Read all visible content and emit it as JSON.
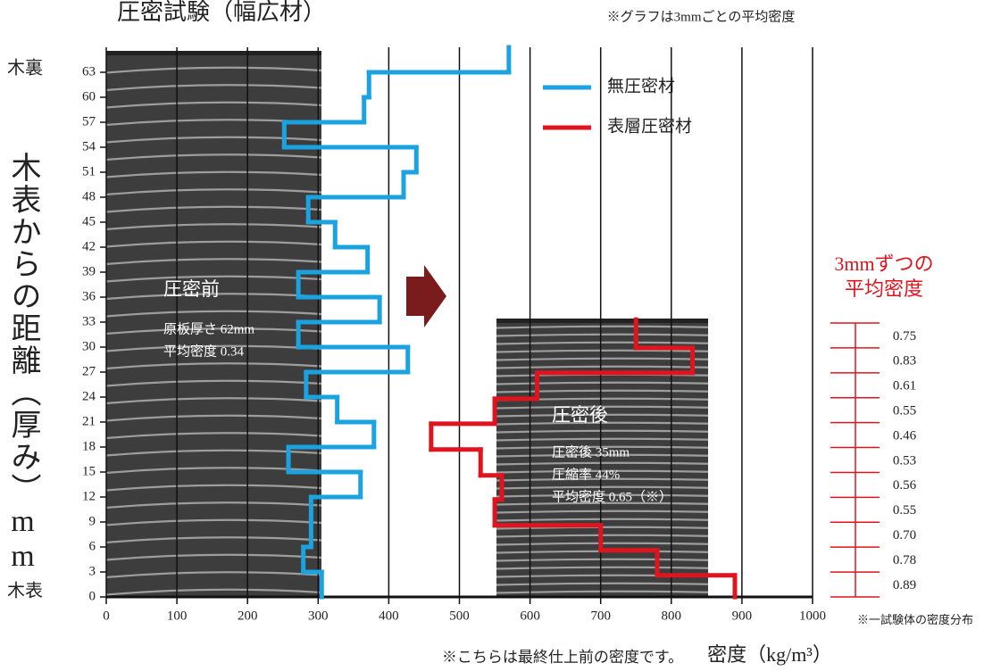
{
  "chart_data": {
    "type": "step",
    "title": "圧密試験（幅広材）",
    "note": "※グラフは3mmごとの平均密度",
    "x_label": "密度（kg/m³）",
    "x_footnote": "※こちらは最終仕上前の密度です。",
    "y_label": "木表からの距離（厚み）mm",
    "y_top_label": "木裏",
    "y_bottom_label": "木表",
    "xlim": [
      0,
      1000
    ],
    "xticks": [
      0,
      100,
      200,
      300,
      400,
      500,
      600,
      700,
      800,
      900,
      1000
    ],
    "ylim": [
      0,
      66
    ],
    "yticks": [
      0,
      3,
      6,
      9,
      12,
      15,
      18,
      21,
      24,
      27,
      30,
      33,
      36,
      39,
      42,
      45,
      48,
      51,
      54,
      57,
      60,
      63
    ],
    "grid": true,
    "series": [
      {
        "name": "無圧密材",
        "color": "#1aa3e0",
        "depth": [
          0,
          3,
          6,
          9,
          12,
          15,
          18,
          21,
          24,
          27,
          30,
          33,
          36,
          39,
          42,
          45,
          48,
          51,
          54,
          57,
          60,
          63,
          66
        ],
        "values": [
          305,
          279,
          290,
          290,
          360,
          258,
          379,
          327,
          283,
          427,
          272,
          387,
          272,
          370,
          324,
          286,
          421,
          439,
          252,
          365,
          372,
          570
        ]
      },
      {
        "name": "表層圧密材",
        "color": "#e0141e",
        "depth": [
          0,
          2.6,
          5.6,
          8.6,
          11.7,
          14.6,
          17.7,
          20.8,
          23.8,
          26.9,
          29.9,
          33.3
        ],
        "values": [
          890,
          780,
          700,
          550,
          560,
          530,
          460,
          550,
          610,
          830,
          750
        ]
      }
    ],
    "annotations": {
      "before": {
        "title": "圧密前",
        "lines": [
          "原板厚さ 62mm",
          "平均密度 0.34"
        ]
      },
      "after": {
        "title": "圧密後",
        "lines": [
          "圧密後 35mm",
          "圧縮率 44%",
          "平均密度 0.65（※）"
        ]
      }
    },
    "side_scale": {
      "title": [
        "3mmずつの",
        "平均密度"
      ],
      "labels": [
        "0.75",
        "0.83",
        "0.61",
        "0.55",
        "0.46",
        "0.53",
        "0.56",
        "0.55",
        "0.70",
        "0.78",
        "0.89"
      ],
      "footnote": "※一試験体の密度分布"
    }
  }
}
